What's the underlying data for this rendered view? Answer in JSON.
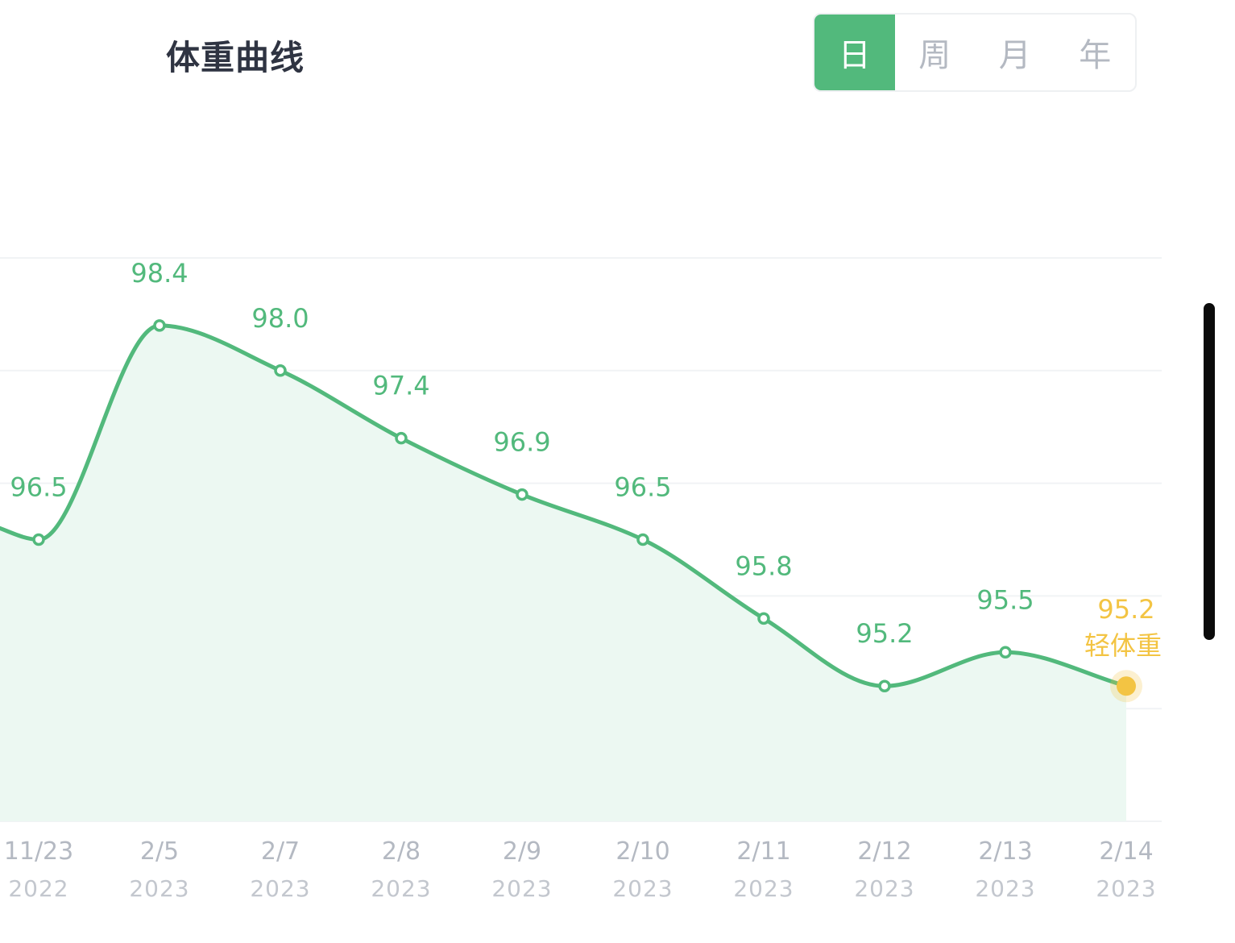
{
  "header": {
    "title": "体重曲线",
    "tabs": [
      {
        "label": "日",
        "active": true
      },
      {
        "label": "周",
        "active": false
      },
      {
        "label": "月",
        "active": false
      },
      {
        "label": "年",
        "active": false
      }
    ]
  },
  "colors": {
    "accent": "#52b97c",
    "fill": "#ecf8f2",
    "highlight": "#f3c443",
    "axis_text": "#b4b9c2",
    "grid": "#f1f3f5"
  },
  "chart_data": {
    "type": "area",
    "x": [
      "11/23",
      "2/5",
      "2/7",
      "2/8",
      "2/9",
      "2/10",
      "2/11",
      "2/12",
      "2/13",
      "2/14"
    ],
    "x_years": [
      "2022",
      "2023",
      "2023",
      "2023",
      "2023",
      "2023",
      "2023",
      "2023",
      "2023",
      "2023"
    ],
    "values": [
      96.5,
      98.4,
      98.0,
      97.4,
      96.9,
      96.5,
      95.8,
      95.2,
      95.5,
      95.2
    ],
    "labels": [
      "96.5",
      "98.4",
      "98.0",
      "97.4",
      "96.9",
      "96.5",
      "95.8",
      "95.2",
      "95.5",
      "95.2"
    ],
    "highlight_index": 9,
    "highlight_label": "轻体重",
    "ylim": [
      94.0,
      99.0
    ],
    "grid": true
  }
}
